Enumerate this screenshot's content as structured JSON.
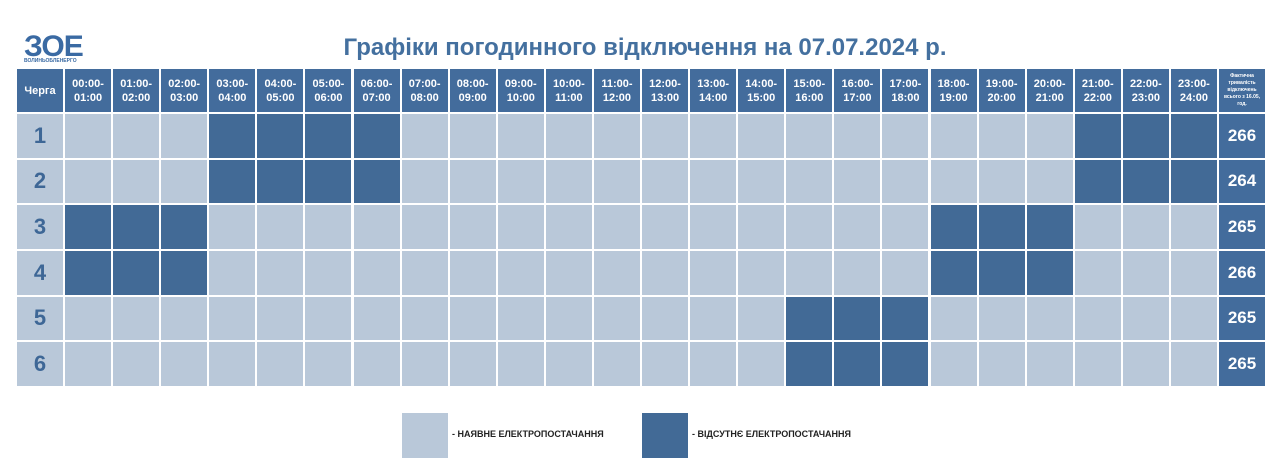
{
  "header": {
    "logo": "ЗОЕ",
    "logo_caption": "ВОЛИНЬОБЛЕНЕРГО",
    "title": "Графіки погодинного відключення на 07.07.2024 р."
  },
  "table": {
    "queue_header": "Черга",
    "hours": [
      {
        "from": "00:00-",
        "to": "01:00"
      },
      {
        "from": "01:00-",
        "to": "02:00"
      },
      {
        "from": "02:00-",
        "to": "03:00"
      },
      {
        "from": "03:00-",
        "to": "04:00"
      },
      {
        "from": "04:00-",
        "to": "05:00"
      },
      {
        "from": "05:00-",
        "to": "06:00"
      },
      {
        "from": "06:00-",
        "to": "07:00"
      },
      {
        "from": "07:00-",
        "to": "08:00"
      },
      {
        "from": "08:00-",
        "to": "09:00"
      },
      {
        "from": "09:00-",
        "to": "10:00"
      },
      {
        "from": "10:00-",
        "to": "11:00"
      },
      {
        "from": "11:00-",
        "to": "12:00"
      },
      {
        "from": "12:00-",
        "to": "13:00"
      },
      {
        "from": "13:00-",
        "to": "14:00"
      },
      {
        "from": "14:00-",
        "to": "15:00"
      },
      {
        "from": "15:00-",
        "to": "16:00"
      },
      {
        "from": "16:00-",
        "to": "17:00"
      },
      {
        "from": "17:00-",
        "to": "18:00"
      },
      {
        "from": "18:00-",
        "to": "19:00"
      },
      {
        "from": "19:00-",
        "to": "20:00"
      },
      {
        "from": "20:00-",
        "to": "21:00"
      },
      {
        "from": "21:00-",
        "to": "22:00"
      },
      {
        "from": "22:00-",
        "to": "23:00"
      },
      {
        "from": "23:00-",
        "to": "24:00"
      }
    ],
    "total_header": "Фактична тривалість відключень всього з 16.05, год.",
    "rows": [
      {
        "queue": "1",
        "cells": [
          0,
          0,
          0,
          1,
          1,
          1,
          1,
          0,
          0,
          0,
          0,
          0,
          0,
          0,
          0,
          0,
          0,
          0,
          0,
          0,
          0,
          1,
          1,
          1
        ],
        "total": "266"
      },
      {
        "queue": "2",
        "cells": [
          0,
          0,
          0,
          1,
          1,
          1,
          1,
          0,
          0,
          0,
          0,
          0,
          0,
          0,
          0,
          0,
          0,
          0,
          0,
          0,
          0,
          1,
          1,
          1
        ],
        "total": "264"
      },
      {
        "queue": "3",
        "cells": [
          1,
          1,
          1,
          0,
          0,
          0,
          0,
          0,
          0,
          0,
          0,
          0,
          0,
          0,
          0,
          0,
          0,
          0,
          1,
          1,
          1,
          0,
          0,
          0
        ],
        "total": "265"
      },
      {
        "queue": "4",
        "cells": [
          1,
          1,
          1,
          0,
          0,
          0,
          0,
          0,
          0,
          0,
          0,
          0,
          0,
          0,
          0,
          0,
          0,
          0,
          1,
          1,
          1,
          0,
          0,
          0
        ],
        "total": "266"
      },
      {
        "queue": "5",
        "cells": [
          0,
          0,
          0,
          0,
          0,
          0,
          0,
          0,
          0,
          0,
          0,
          0,
          0,
          0,
          0,
          1,
          1,
          1,
          0,
          0,
          0,
          0,
          0,
          0
        ],
        "total": "265"
      },
      {
        "queue": "6",
        "cells": [
          0,
          0,
          0,
          0,
          0,
          0,
          0,
          0,
          0,
          0,
          0,
          0,
          0,
          0,
          0,
          1,
          1,
          1,
          0,
          0,
          0,
          0,
          0,
          0
        ],
        "total": "265"
      }
    ]
  },
  "legend": [
    {
      "color": "#b9c8d9",
      "label": "- НАЯВНЕ ЕЛЕКТРОПОСТАЧАННЯ"
    },
    {
      "color": "#426a96",
      "label": "- ВІДСУТНЄ ЕЛЕКТРОПОСТАЧАННЯ"
    }
  ]
}
